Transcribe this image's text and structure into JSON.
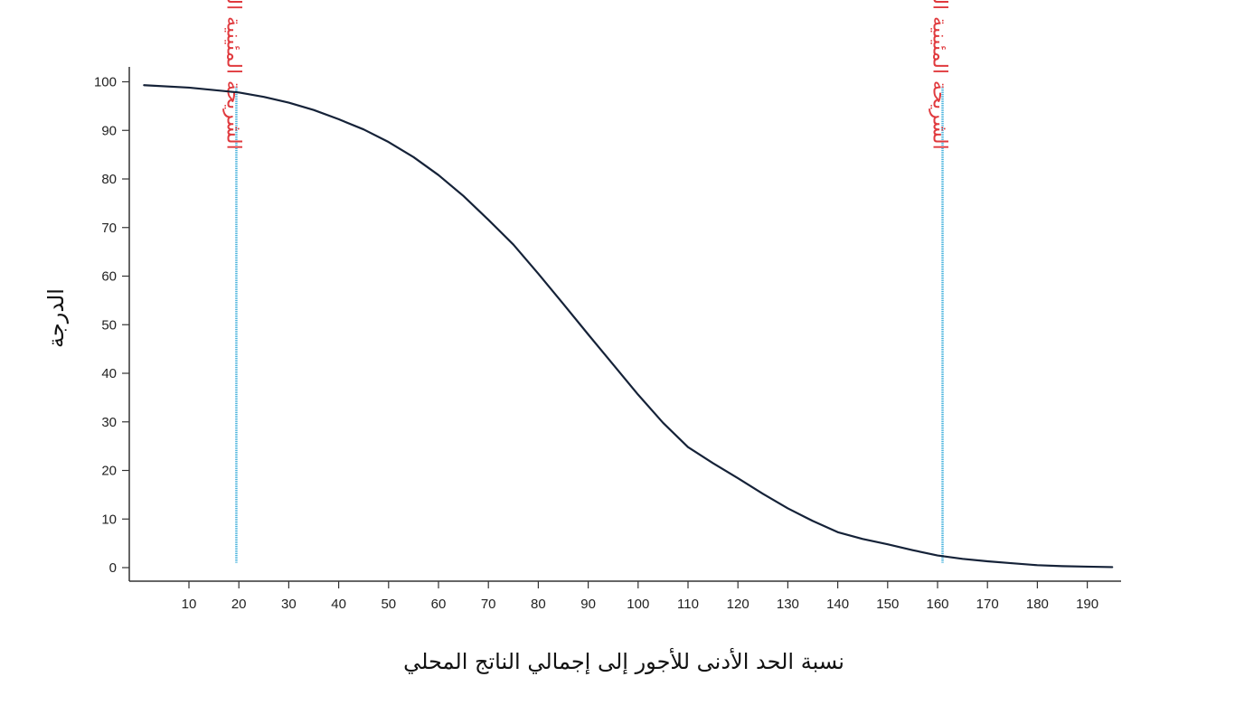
{
  "chart_data": {
    "type": "line",
    "title": "",
    "xlabel": "نسبة الحد الأدنى للأجور إلى إجمالي الناتج المحلي",
    "ylabel": "الدرجة",
    "xlim": [
      0,
      196
    ],
    "ylim": [
      -3,
      103
    ],
    "x_ticks": [
      10,
      20,
      30,
      40,
      50,
      60,
      70,
      80,
      90,
      100,
      110,
      120,
      130,
      140,
      150,
      160,
      170,
      180,
      190
    ],
    "y_ticks": [
      0,
      10,
      20,
      30,
      40,
      50,
      60,
      70,
      80,
      90,
      100
    ],
    "grid": false,
    "series": [
      {
        "x": [
          1,
          10,
          20,
          25,
          30,
          35,
          40,
          45,
          50,
          55,
          60,
          65,
          70,
          75,
          80,
          85,
          90,
          95,
          100,
          105,
          110,
          115,
          120,
          125,
          130,
          135,
          140,
          145,
          150,
          155,
          160,
          165,
          170,
          175,
          180,
          185,
          190,
          195
        ],
        "y": [
          99.3,
          98.8,
          97.8,
          96.9,
          95.7,
          94.2,
          92.3,
          90.2,
          87.6,
          84.5,
          80.8,
          76.5,
          71.6,
          66.5,
          60.5,
          54.3,
          48,
          41.8,
          35.6,
          29.8,
          24.8,
          21.5,
          18.4,
          15.2,
          12.2,
          9.6,
          7.3,
          5.9,
          4.8,
          3.6,
          2.5,
          1.8,
          1.3,
          0.9,
          0.5,
          0.3,
          0.2,
          0.1
        ],
        "color": "#152238"
      }
    ],
    "annotations": [
      {
        "x": 19.5,
        "y_range": [
          1,
          99
        ],
        "text": "الشريحة المئينية الخامسة",
        "line_color": "#2aa6d8",
        "text_color": "#e03a3e"
      },
      {
        "x": 161,
        "y_range": [
          1,
          99
        ],
        "text": "الشريحة المئينية الخامسة والتسعين",
        "line_color": "#2aa6d8",
        "text_color": "#e03a3e"
      }
    ]
  }
}
